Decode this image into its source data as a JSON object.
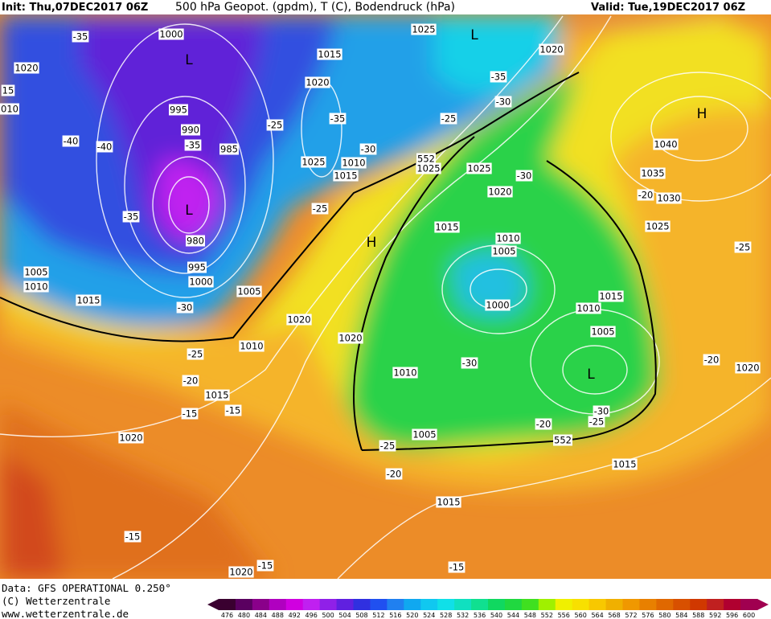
{
  "header": {
    "init": "Init: Thu,07DEC2017 06Z",
    "title": "500 hPa Geopot. (gpdm), T (C), Bodendruck (hPa)",
    "valid": "Valid: Tue,19DEC2017 06Z"
  },
  "map": {
    "labels": [
      "-35",
      "1000",
      "L",
      "1020",
      "15",
      "010",
      "995",
      "990",
      "-40",
      "-40",
      "-35",
      "985",
      "L",
      "-35",
      "980",
      "995",
      "1000",
      "1005",
      "1010",
      "1015",
      "-30",
      "1005",
      "-25",
      "1020",
      "1015",
      "-35",
      "-30",
      "1025",
      "1010",
      "1015",
      "-25",
      "H",
      "552",
      "1025",
      "1025",
      "L",
      "1020",
      "-35",
      "-30",
      "-25",
      "1025",
      "-30",
      "1020",
      "1015",
      "1010",
      "1005",
      "1000",
      "1015",
      "1010",
      "1005",
      "L",
      "-30",
      "1010",
      "1020",
      "1020",
      "1010",
      "-25",
      "-20",
      "1015",
      "-15",
      "-15",
      "1020",
      "1005",
      "-25",
      "552",
      "-20",
      "-30",
      "-25",
      "1015",
      "-20",
      "1015",
      "-15",
      "-15",
      "1020",
      "-15",
      "H",
      "1040",
      "1035",
      "-20",
      "1030",
      "1025",
      "-25",
      "-20",
      "1020"
    ]
  },
  "footer": {
    "source": "Data: GFS OPERATIONAL 0.250°",
    "copyright": "(C) Wetterzentrale",
    "url": "www.wetterzentrale.de"
  },
  "legend": {
    "values": [
      476,
      480,
      484,
      488,
      492,
      496,
      500,
      504,
      508,
      512,
      516,
      520,
      524,
      528,
      532,
      536,
      540,
      544,
      548,
      552,
      556,
      560,
      564,
      568,
      572,
      576,
      580,
      584,
      588,
      592,
      596,
      600
    ],
    "colors": [
      "#3a0030",
      "#5a0060",
      "#8a008a",
      "#b000c0",
      "#d000e0",
      "#c020f0",
      "#9020e8",
      "#6020e0",
      "#3030e0",
      "#2050f0",
      "#2080f0",
      "#10a8f0",
      "#10c8f0",
      "#10e0e8",
      "#10e0c0",
      "#10e090",
      "#10d860",
      "#20d840",
      "#40e020",
      "#a0f000",
      "#f0f000",
      "#f8e000",
      "#f8c800",
      "#f0b000",
      "#f09800",
      "#e88000",
      "#e06800",
      "#d85000",
      "#d03800",
      "#c02020",
      "#b00030",
      "#a00050"
    ]
  }
}
